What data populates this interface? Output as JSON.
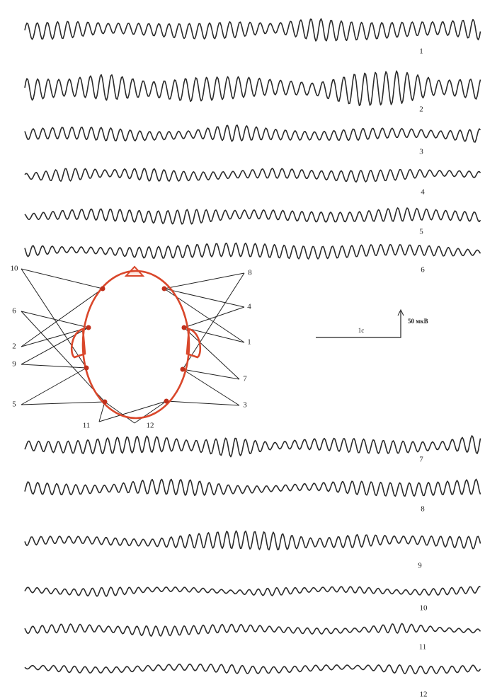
{
  "traces": [
    {
      "label": "1"
    },
    {
      "label": "2"
    },
    {
      "label": "3"
    },
    {
      "label": "4"
    },
    {
      "label": "5"
    },
    {
      "label": "6"
    },
    {
      "label": "7"
    },
    {
      "label": "8"
    },
    {
      "label": "9"
    },
    {
      "label": "10"
    },
    {
      "label": "11"
    },
    {
      "label": "12"
    }
  ],
  "montage": {
    "left_labels": [
      "10",
      "6",
      "2",
      "9",
      "5"
    ],
    "right_labels": [
      "8",
      "4",
      "1",
      "7",
      "3"
    ],
    "bottom_labels": [
      "11",
      "12"
    ]
  },
  "scale": {
    "time": "1с",
    "amplitude": "50 мкВ"
  }
}
